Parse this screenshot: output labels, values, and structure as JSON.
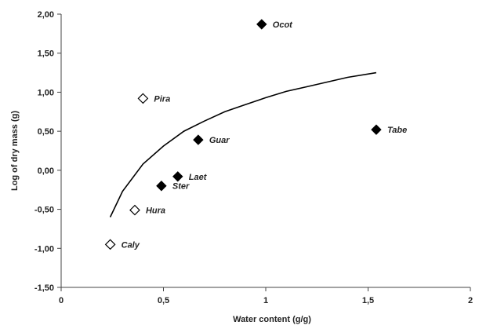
{
  "chart_data": {
    "type": "scatter",
    "xlabel": "Water content  (g/g)",
    "ylabel": "Log of dry mass (g)",
    "xlim": [
      0,
      2
    ],
    "ylim": [
      -1.5,
      2.0
    ],
    "x_ticks": [
      "0",
      "0,5",
      "1",
      "1,5",
      "2"
    ],
    "y_ticks": [
      "-1,50",
      "-1,00",
      "-0,50",
      "0,00",
      "0,50",
      "1,00",
      "1,50",
      "2,00"
    ],
    "grid": false,
    "series": [
      {
        "marker": "filled-diamond",
        "color": "#000000",
        "points": [
          {
            "label": "Ocot",
            "x": 0.98,
            "y": 1.87
          },
          {
            "label": "Tabe",
            "x": 1.54,
            "y": 0.52
          },
          {
            "label": "Guar",
            "x": 0.67,
            "y": 0.39
          },
          {
            "label": "Laet",
            "x": 0.57,
            "y": -0.08
          },
          {
            "label": "Ster",
            "x": 0.49,
            "y": -0.2
          }
        ]
      },
      {
        "marker": "open-diamond",
        "color": "#000000",
        "points": [
          {
            "label": "Pira",
            "x": 0.4,
            "y": 0.92
          },
          {
            "label": "Hura",
            "x": 0.36,
            "y": -0.51
          },
          {
            "label": "Caly",
            "x": 0.24,
            "y": -0.95
          }
        ]
      }
    ],
    "trend_line": {
      "type": "logarithmic",
      "points": [
        {
          "x": 0.24,
          "y": -0.6
        },
        {
          "x": 0.3,
          "y": -0.27
        },
        {
          "x": 0.4,
          "y": 0.08
        },
        {
          "x": 0.5,
          "y": 0.31
        },
        {
          "x": 0.6,
          "y": 0.5
        },
        {
          "x": 0.7,
          "y": 0.63
        },
        {
          "x": 0.8,
          "y": 0.75
        },
        {
          "x": 0.9,
          "y": 0.84
        },
        {
          "x": 1.0,
          "y": 0.93
        },
        {
          "x": 1.1,
          "y": 1.01
        },
        {
          "x": 1.2,
          "y": 1.07
        },
        {
          "x": 1.3,
          "y": 1.13
        },
        {
          "x": 1.4,
          "y": 1.19
        },
        {
          "x": 1.54,
          "y": 1.25
        }
      ]
    }
  }
}
